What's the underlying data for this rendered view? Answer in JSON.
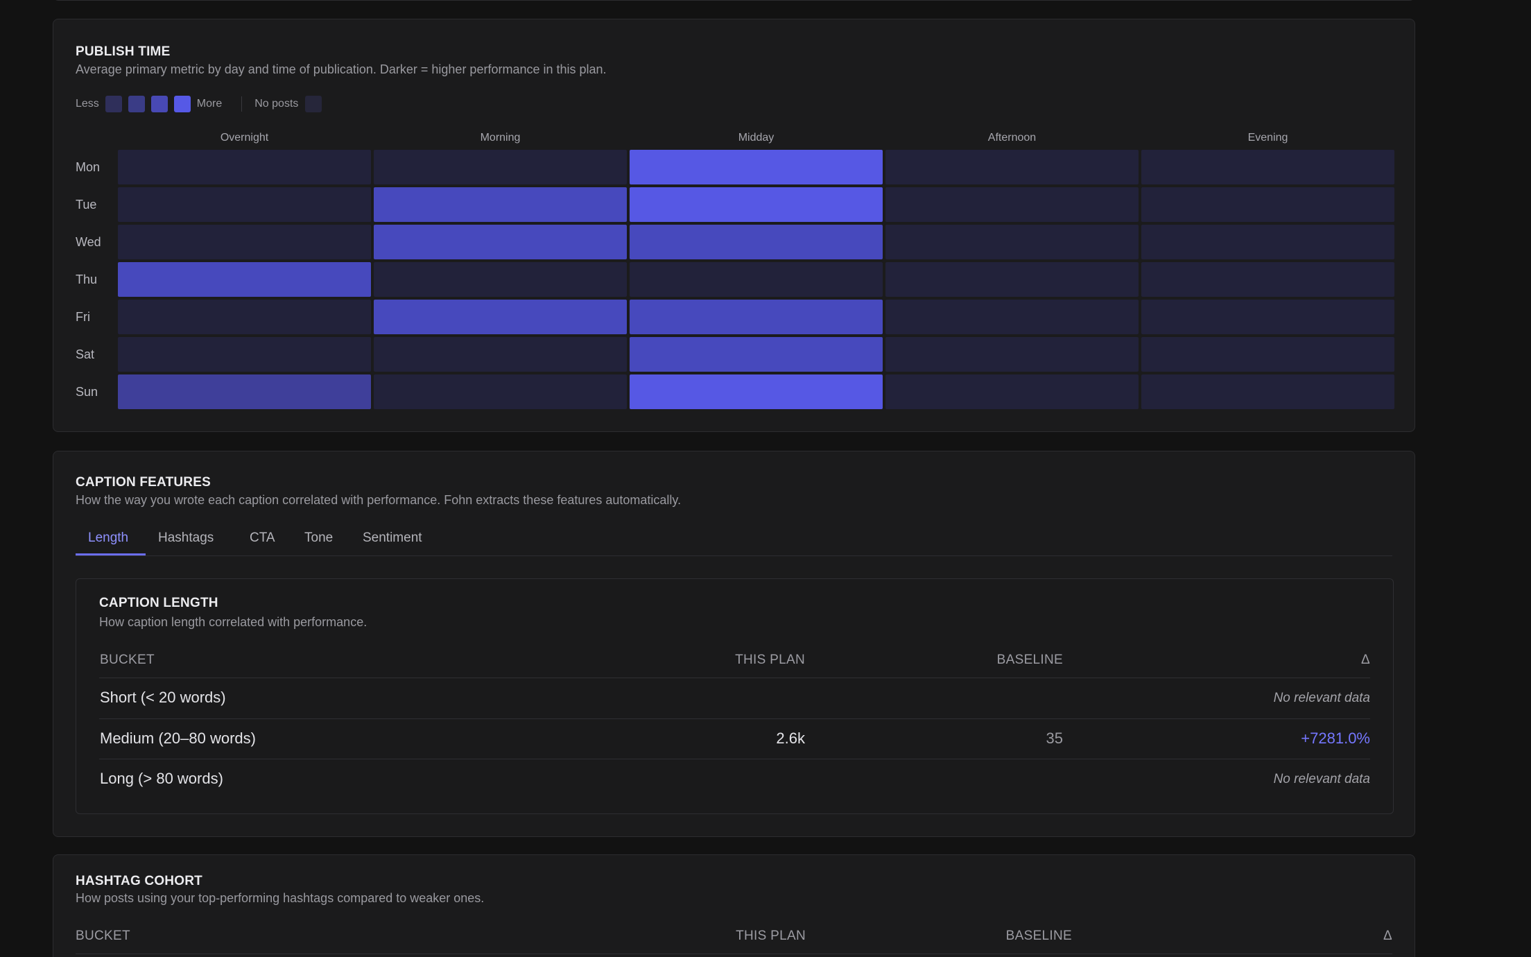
{
  "publish_time": {
    "title": "PUBLISH TIME",
    "subtitle": "Average primary metric by day and time of publication. Darker = higher performance in this plan.",
    "legend": {
      "less": "Less",
      "more": "More",
      "no_posts": "No posts"
    },
    "legend_colors": [
      "#2f2f5a",
      "#3a3c86",
      "#4849b4",
      "#5659e6"
    ],
    "no_posts_color": "#26263a",
    "columns": [
      "Overnight",
      "Morning",
      "Midday",
      "Afternoon",
      "Evening"
    ],
    "days": [
      "Mon",
      "Tue",
      "Wed",
      "Thu",
      "Fri",
      "Sat",
      "Sun"
    ],
    "levels": [
      [
        0,
        0,
        4,
        0,
        0
      ],
      [
        0,
        3,
        4,
        0,
        0
      ],
      [
        0,
        3,
        3,
        0,
        0
      ],
      [
        3,
        0,
        0,
        0,
        0
      ],
      [
        0,
        3,
        3,
        0,
        0
      ],
      [
        0,
        0,
        3,
        0,
        0
      ],
      [
        2,
        0,
        4,
        0,
        0
      ]
    ],
    "level_colors": [
      "#22223a",
      "#2f2f5a",
      "#3f3f9a",
      "#4749bd",
      "#5658e4"
    ]
  },
  "caption_features": {
    "title": "CAPTION FEATURES",
    "subtitle": "How the way you wrote each caption correlated with performance. Fohn extracts these features automatically.",
    "tabs": [
      "Length",
      "Hashtags",
      "CTA",
      "Tone",
      "Sentiment"
    ],
    "active_tab": "Length",
    "caption_length": {
      "title": "CAPTION LENGTH",
      "subtitle": "How caption length correlated with performance.",
      "headers": {
        "bucket": "BUCKET",
        "this_plan": "THIS PLAN",
        "baseline": "BASELINE",
        "delta": "Δ"
      },
      "rows": [
        {
          "bucket": "Short (< 20 words)",
          "this_plan": "",
          "baseline": "",
          "delta": "",
          "note": "No relevant data"
        },
        {
          "bucket": "Medium (20–80 words)",
          "this_plan": "2.6k",
          "baseline": "35",
          "delta": "+7281.0%",
          "note": ""
        },
        {
          "bucket": "Long (> 80 words)",
          "this_plan": "",
          "baseline": "",
          "delta": "",
          "note": "No relevant data"
        }
      ]
    }
  },
  "hashtag_cohort": {
    "title": "HASHTAG COHORT",
    "subtitle": "How posts using your top-performing hashtags compared to weaker ones.",
    "headers": {
      "bucket": "BUCKET",
      "this_plan": "THIS PLAN",
      "baseline": "BASELINE",
      "delta": "Δ"
    }
  }
}
